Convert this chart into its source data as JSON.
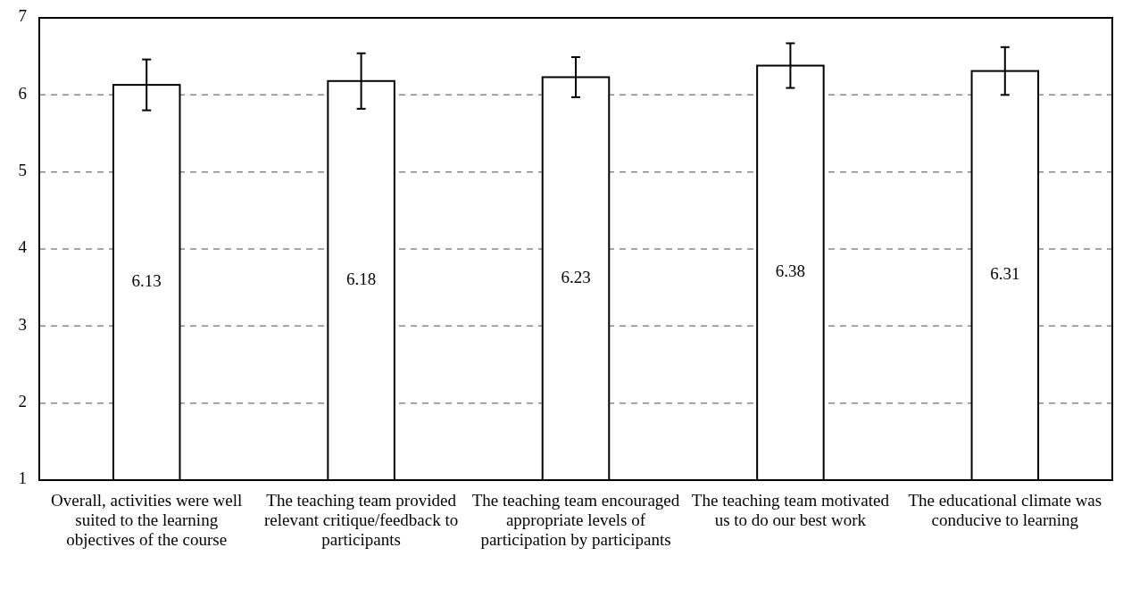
{
  "chart_data": {
    "type": "bar",
    "categories": [
      "Overall, activities were well suited to the learning objectives of the course",
      "The teaching team provided relevant critique/feedback to participants",
      "The teaching team encouraged appropriate levels of participation by participants",
      "The teaching team motivated us to do our best work",
      "The educational climate was conducive to learning"
    ],
    "values": [
      6.13,
      6.18,
      6.23,
      6.38,
      6.31
    ],
    "errors": [
      0.33,
      0.36,
      0.26,
      0.29,
      0.31
    ],
    "color": "#ffffff",
    "ylim": [
      1,
      7
    ],
    "yticks": [
      1,
      2,
      3,
      4,
      5,
      6,
      7
    ],
    "grid": "y",
    "data_labels": true
  }
}
